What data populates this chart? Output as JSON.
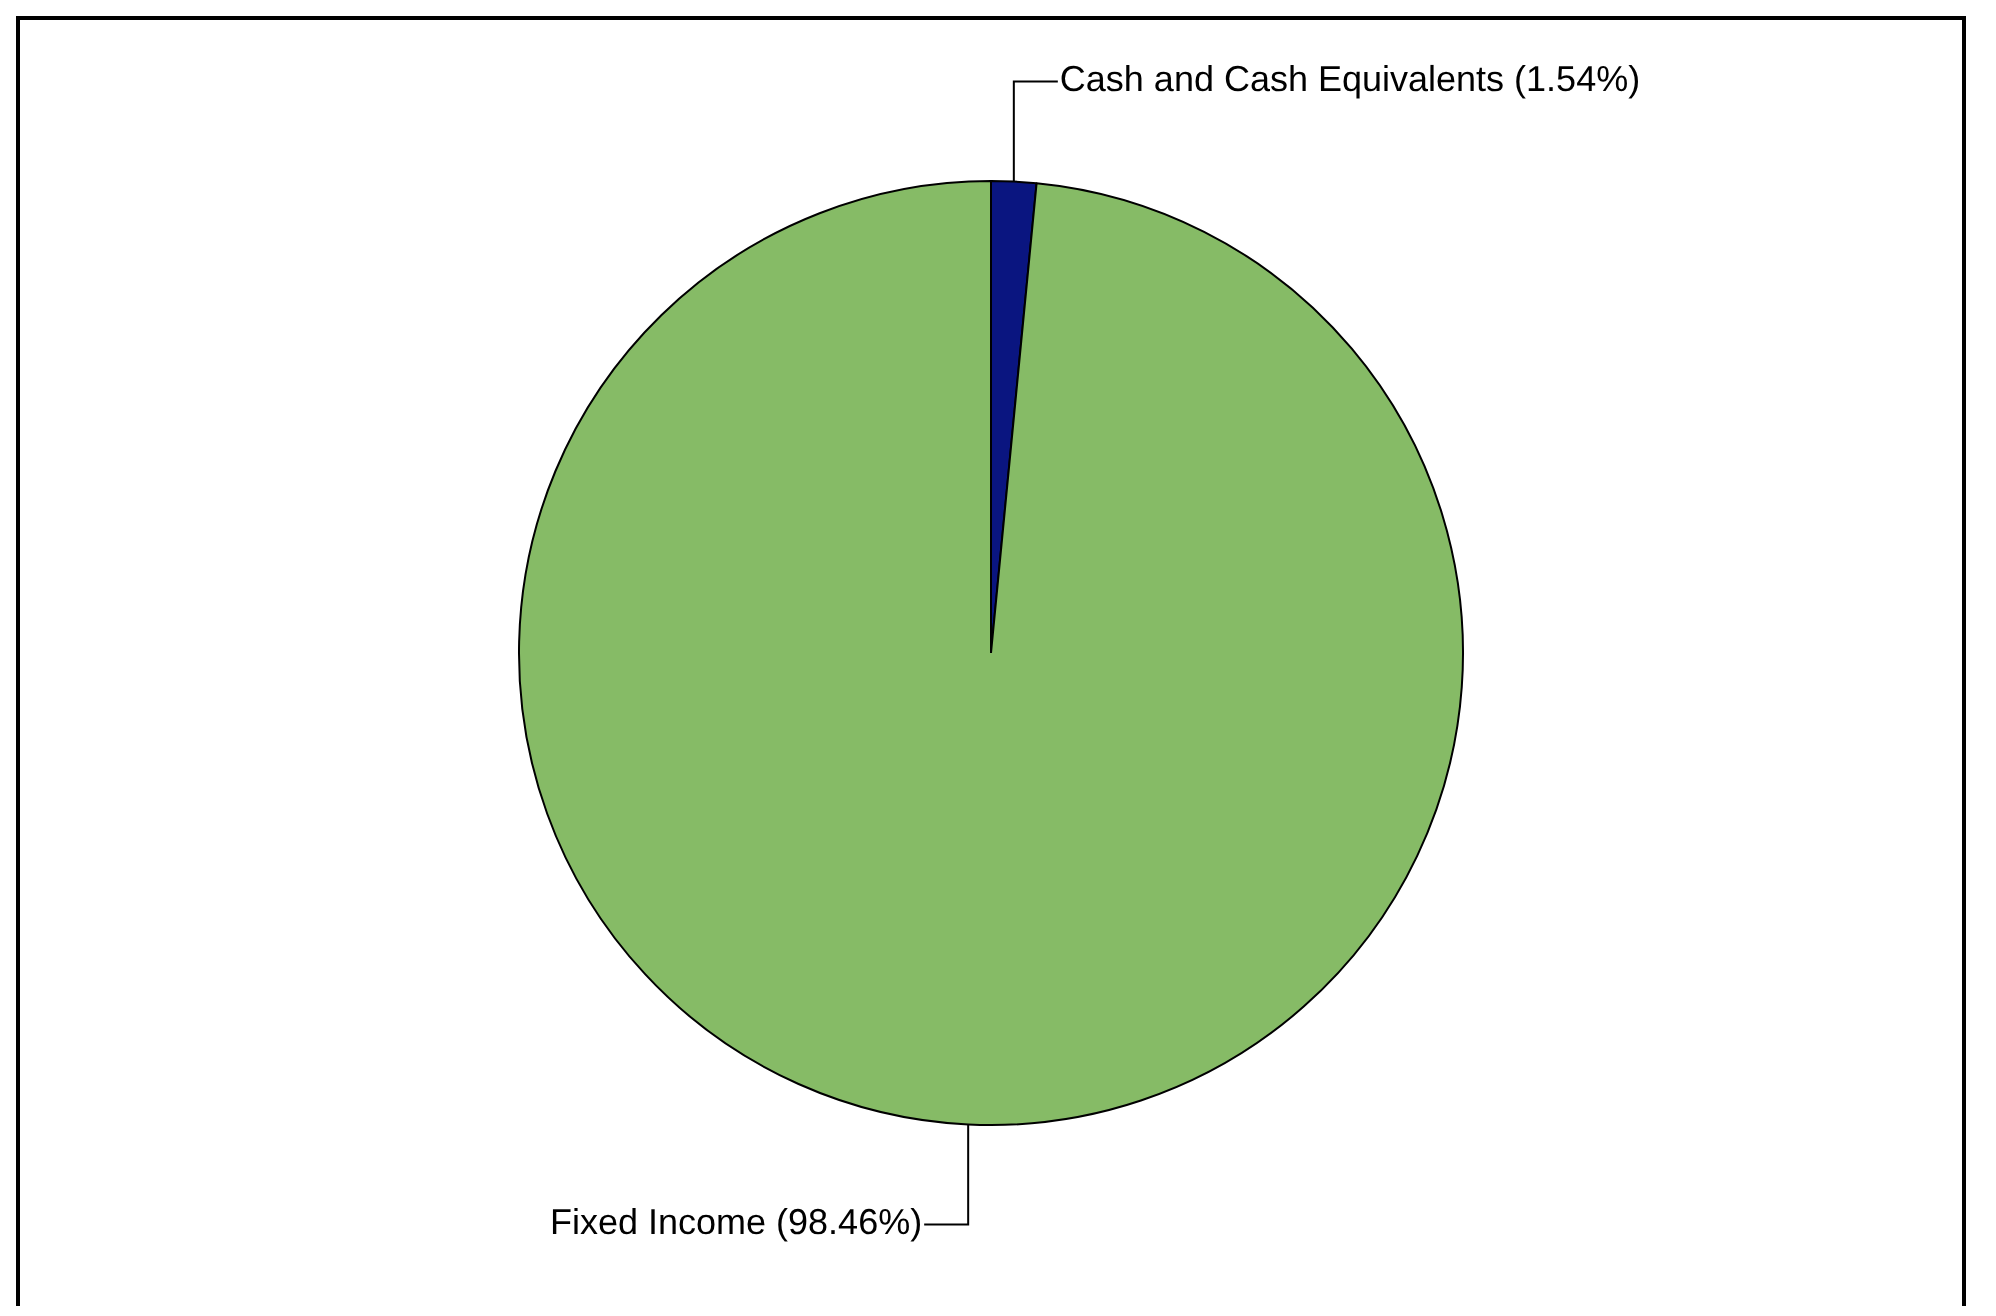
{
  "chart_data": {
    "type": "pie",
    "categories": [
      "Cash and Cash Equivalents (1.54%)",
      "Fixed Income (98.46%)"
    ],
    "values": [
      1.54,
      98.46
    ],
    "colors": [
      "#0a1580",
      "#86bb66"
    ],
    "legend": false
  }
}
